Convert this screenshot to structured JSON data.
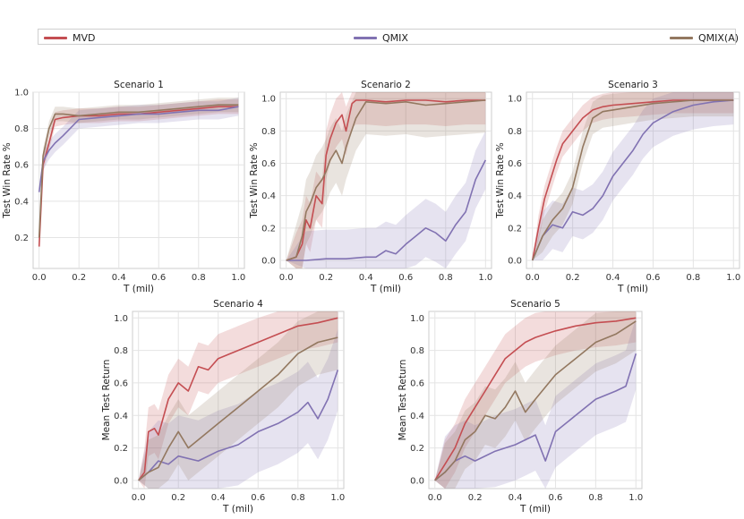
{
  "legend": [
    {
      "name": "MVD",
      "color": "#c44e52"
    },
    {
      "name": "QMIX",
      "color": "#8172b2"
    },
    {
      "name": "QMIX(A)",
      "color": "#937860"
    }
  ],
  "chart_data": [
    {
      "type": "line",
      "title": "Scenario 1",
      "xlabel": "T (mil)",
      "ylabel": "Test Win Rate %",
      "xlim": [
        -0.03,
        1.03
      ],
      "ylim": [
        0.03,
        1.0
      ],
      "xticks": [
        "0.0",
        "0.2",
        "0.4",
        "0.6",
        "0.8",
        "1.0"
      ],
      "yticks": [
        "0.2",
        "0.4",
        "0.6",
        "0.8",
        "1.0"
      ],
      "series": [
        {
          "name": "MVD",
          "x": [
            0,
            0.02,
            0.05,
            0.08,
            0.12,
            0.2,
            0.3,
            0.4,
            0.5,
            0.6,
            0.7,
            0.8,
            0.9,
            1.0
          ],
          "values": [
            0.15,
            0.6,
            0.72,
            0.85,
            0.86,
            0.87,
            0.87,
            0.88,
            0.88,
            0.89,
            0.9,
            0.91,
            0.92,
            0.92
          ],
          "band": 0.04
        },
        {
          "name": "QMIX",
          "x": [
            0,
            0.02,
            0.05,
            0.08,
            0.12,
            0.2,
            0.3,
            0.4,
            0.5,
            0.6,
            0.7,
            0.8,
            0.9,
            1.0
          ],
          "values": [
            0.45,
            0.62,
            0.68,
            0.72,
            0.76,
            0.85,
            0.86,
            0.87,
            0.88,
            0.88,
            0.89,
            0.9,
            0.9,
            0.92
          ],
          "band": 0.05
        },
        {
          "name": "QMIX(A)",
          "x": [
            0,
            0.02,
            0.05,
            0.08,
            0.12,
            0.2,
            0.3,
            0.4,
            0.5,
            0.6,
            0.7,
            0.8,
            0.9,
            1.0
          ],
          "values": [
            0.2,
            0.65,
            0.8,
            0.88,
            0.88,
            0.87,
            0.88,
            0.89,
            0.89,
            0.9,
            0.91,
            0.92,
            0.93,
            0.93
          ],
          "band": 0.04
        }
      ]
    },
    {
      "type": "line",
      "title": "Scenario 2",
      "xlabel": "T (mil)",
      "ylabel": "Test Win Rate %",
      "xlim": [
        -0.03,
        1.03
      ],
      "ylim": [
        -0.05,
        1.04
      ],
      "xticks": [
        "0.0",
        "0.2",
        "0.4",
        "0.6",
        "0.8",
        "1.0"
      ],
      "yticks": [
        "0.0",
        "0.2",
        "0.4",
        "0.6",
        "0.8",
        "1.0"
      ],
      "series": [
        {
          "name": "MVD",
          "x": [
            0,
            0.05,
            0.08,
            0.1,
            0.12,
            0.15,
            0.18,
            0.2,
            0.22,
            0.25,
            0.28,
            0.3,
            0.33,
            0.35,
            0.4,
            0.5,
            0.6,
            0.7,
            0.8,
            0.9,
            1.0
          ],
          "values": [
            0,
            0.02,
            0.1,
            0.25,
            0.2,
            0.4,
            0.35,
            0.65,
            0.75,
            0.85,
            0.9,
            0.8,
            0.97,
            0.99,
            0.99,
            0.98,
            0.99,
            0.99,
            0.98,
            0.99,
            0.99
          ],
          "band": 0.15
        },
        {
          "name": "QMIX",
          "x": [
            0,
            0.1,
            0.2,
            0.3,
            0.4,
            0.45,
            0.5,
            0.55,
            0.6,
            0.65,
            0.7,
            0.75,
            0.8,
            0.85,
            0.9,
            0.95,
            1.0
          ],
          "values": [
            0,
            0,
            0.01,
            0.01,
            0.02,
            0.02,
            0.06,
            0.04,
            0.1,
            0.15,
            0.2,
            0.17,
            0.12,
            0.22,
            0.3,
            0.5,
            0.62
          ],
          "band": 0.18
        },
        {
          "name": "QMIX(A)",
          "x": [
            0,
            0.05,
            0.08,
            0.1,
            0.12,
            0.15,
            0.18,
            0.2,
            0.22,
            0.25,
            0.28,
            0.3,
            0.35,
            0.4,
            0.5,
            0.6,
            0.7,
            0.8,
            0.9,
            1.0
          ],
          "values": [
            0,
            0.02,
            0.15,
            0.3,
            0.35,
            0.45,
            0.5,
            0.55,
            0.62,
            0.68,
            0.6,
            0.7,
            0.88,
            0.98,
            0.97,
            0.98,
            0.96,
            0.97,
            0.98,
            0.99
          ],
          "band": 0.2
        }
      ]
    },
    {
      "type": "line",
      "title": "Scenario 3",
      "xlabel": "T (mil)",
      "ylabel": "Test Win Rate %",
      "xlim": [
        -0.03,
        1.03
      ],
      "ylim": [
        -0.05,
        1.04
      ],
      "xticks": [
        "0.0",
        "0.2",
        "0.4",
        "0.6",
        "0.8",
        "1.0"
      ],
      "yticks": [
        "0.0",
        "0.2",
        "0.4",
        "0.6",
        "0.8",
        "1.0"
      ],
      "series": [
        {
          "name": "MVD",
          "x": [
            0,
            0.03,
            0.06,
            0.09,
            0.12,
            0.15,
            0.2,
            0.25,
            0.3,
            0.35,
            0.4,
            0.5,
            0.6,
            0.7,
            0.8,
            0.9,
            1.0
          ],
          "values": [
            0,
            0.2,
            0.38,
            0.5,
            0.62,
            0.72,
            0.8,
            0.88,
            0.93,
            0.95,
            0.96,
            0.97,
            0.98,
            0.99,
            0.99,
            0.99,
            0.99
          ],
          "band": 0.08
        },
        {
          "name": "QMIX",
          "x": [
            0,
            0.05,
            0.1,
            0.15,
            0.2,
            0.25,
            0.3,
            0.35,
            0.4,
            0.45,
            0.5,
            0.55,
            0.6,
            0.7,
            0.8,
            0.9,
            1.0
          ],
          "values": [
            0,
            0.15,
            0.22,
            0.2,
            0.3,
            0.28,
            0.32,
            0.4,
            0.52,
            0.6,
            0.68,
            0.78,
            0.85,
            0.92,
            0.96,
            0.98,
            0.99
          ],
          "band": 0.15
        },
        {
          "name": "QMIX(A)",
          "x": [
            0,
            0.05,
            0.1,
            0.15,
            0.2,
            0.25,
            0.3,
            0.35,
            0.4,
            0.5,
            0.6,
            0.7,
            0.8,
            0.9,
            1.0
          ],
          "values": [
            0,
            0.15,
            0.25,
            0.32,
            0.45,
            0.7,
            0.88,
            0.92,
            0.93,
            0.95,
            0.97,
            0.98,
            0.99,
            0.99,
            0.99
          ],
          "band": 0.1
        }
      ]
    },
    {
      "type": "line",
      "title": "Scenario 4",
      "xlabel": "T (mil)",
      "ylabel": "Mean Test Return",
      "xlim": [
        -0.03,
        1.03
      ],
      "ylim": [
        -0.05,
        1.04
      ],
      "xticks": [
        "0.0",
        "0.2",
        "0.4",
        "0.6",
        "0.8",
        "1.0"
      ],
      "yticks": [
        "0.0",
        "0.2",
        "0.4",
        "0.6",
        "0.8",
        "1.0"
      ],
      "series": [
        {
          "name": "MVD",
          "x": [
            0,
            0.03,
            0.05,
            0.08,
            0.1,
            0.15,
            0.2,
            0.25,
            0.3,
            0.35,
            0.4,
            0.5,
            0.6,
            0.7,
            0.8,
            0.9,
            1.0
          ],
          "values": [
            0,
            0.05,
            0.3,
            0.32,
            0.28,
            0.5,
            0.6,
            0.55,
            0.7,
            0.68,
            0.75,
            0.8,
            0.85,
            0.9,
            0.95,
            0.97,
            1.0
          ],
          "band": 0.15
        },
        {
          "name": "QMIX",
          "x": [
            0,
            0.05,
            0.1,
            0.15,
            0.2,
            0.3,
            0.4,
            0.5,
            0.6,
            0.7,
            0.8,
            0.85,
            0.9,
            0.95,
            1.0
          ],
          "values": [
            0,
            0.05,
            0.12,
            0.1,
            0.15,
            0.12,
            0.18,
            0.22,
            0.3,
            0.35,
            0.42,
            0.48,
            0.38,
            0.5,
            0.68
          ],
          "band": 0.25
        },
        {
          "name": "QMIX(A)",
          "x": [
            0,
            0.05,
            0.1,
            0.15,
            0.2,
            0.25,
            0.3,
            0.35,
            0.4,
            0.5,
            0.6,
            0.7,
            0.8,
            0.9,
            1.0
          ],
          "values": [
            0,
            0.05,
            0.08,
            0.2,
            0.3,
            0.2,
            0.25,
            0.3,
            0.35,
            0.45,
            0.55,
            0.65,
            0.78,
            0.85,
            0.88
          ],
          "band": 0.2
        }
      ]
    },
    {
      "type": "line",
      "title": "Scenario 5",
      "xlabel": "T (mil)",
      "ylabel": "Mean Test Return",
      "xlim": [
        -0.03,
        1.03
      ],
      "ylim": [
        -0.05,
        1.04
      ],
      "xticks": [
        "0.0",
        "0.2",
        "0.4",
        "0.6",
        "0.8",
        "1.0"
      ],
      "yticks": [
        "0.0",
        "0.2",
        "0.4",
        "0.6",
        "0.8",
        "1.0"
      ],
      "series": [
        {
          "name": "MVD",
          "x": [
            0,
            0.05,
            0.1,
            0.15,
            0.2,
            0.25,
            0.3,
            0.35,
            0.4,
            0.45,
            0.5,
            0.55,
            0.6,
            0.7,
            0.8,
            0.9,
            1.0
          ],
          "values": [
            0,
            0.1,
            0.2,
            0.35,
            0.45,
            0.55,
            0.65,
            0.75,
            0.8,
            0.85,
            0.88,
            0.9,
            0.92,
            0.95,
            0.97,
            0.98,
            1.0
          ],
          "band": 0.15
        },
        {
          "name": "QMIX",
          "x": [
            0,
            0.05,
            0.1,
            0.15,
            0.2,
            0.3,
            0.4,
            0.45,
            0.5,
            0.55,
            0.6,
            0.7,
            0.8,
            0.9,
            0.95,
            1.0
          ],
          "values": [
            0,
            0.05,
            0.12,
            0.15,
            0.12,
            0.18,
            0.22,
            0.25,
            0.28,
            0.12,
            0.3,
            0.4,
            0.5,
            0.55,
            0.58,
            0.78
          ],
          "band": 0.22
        },
        {
          "name": "QMIX(A)",
          "x": [
            0,
            0.05,
            0.1,
            0.15,
            0.2,
            0.25,
            0.3,
            0.35,
            0.4,
            0.45,
            0.5,
            0.6,
            0.7,
            0.8,
            0.9,
            1.0
          ],
          "values": [
            0,
            0.05,
            0.12,
            0.25,
            0.3,
            0.4,
            0.38,
            0.45,
            0.55,
            0.42,
            0.5,
            0.65,
            0.75,
            0.85,
            0.9,
            0.98
          ],
          "band": 0.18
        }
      ]
    }
  ]
}
